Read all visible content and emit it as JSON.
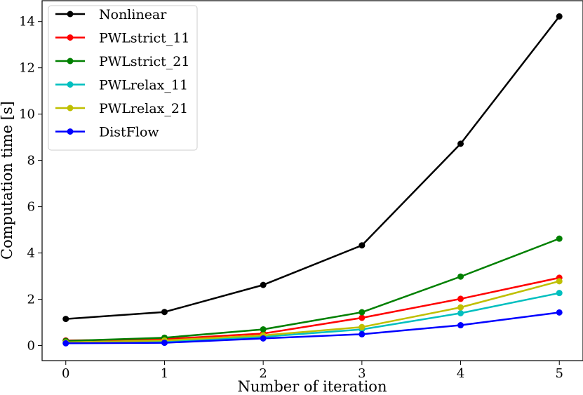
{
  "chart_data": {
    "type": "line",
    "xlabel": "Number of iteration",
    "ylabel": "Computation time [s]",
    "xlim": [
      -0.24,
      5.24
    ],
    "ylim": [
      -0.65,
      14.9
    ],
    "xticks": [
      0,
      1,
      2,
      3,
      4,
      5
    ],
    "yticks": [
      0,
      2,
      4,
      6,
      8,
      10,
      12,
      14
    ],
    "grid": false,
    "legend": "top-left",
    "x": [
      0,
      1,
      2,
      3,
      4,
      5
    ],
    "series": [
      {
        "name": "Nonlinear",
        "color": "#000000",
        "values": [
          1.15,
          1.45,
          2.62,
          4.33,
          8.72,
          14.22
        ]
      },
      {
        "name": "PWLstrict_11",
        "color": "#ff0000",
        "values": [
          0.22,
          0.28,
          0.52,
          1.2,
          2.02,
          2.93
        ]
      },
      {
        "name": "PWLstrict_21",
        "color": "#008000",
        "values": [
          0.2,
          0.34,
          0.7,
          1.44,
          2.98,
          4.62
        ]
      },
      {
        "name": "PWLrelax_11",
        "color": "#00bfbf",
        "values": [
          0.12,
          0.18,
          0.38,
          0.7,
          1.4,
          2.27
        ]
      },
      {
        "name": "PWLrelax_21",
        "color": "#bfbf00",
        "values": [
          0.14,
          0.22,
          0.44,
          0.8,
          1.65,
          2.78
        ]
      },
      {
        "name": "DistFlow",
        "color": "#0000ff",
        "values": [
          0.1,
          0.12,
          0.31,
          0.49,
          0.88,
          1.43
        ]
      }
    ]
  }
}
